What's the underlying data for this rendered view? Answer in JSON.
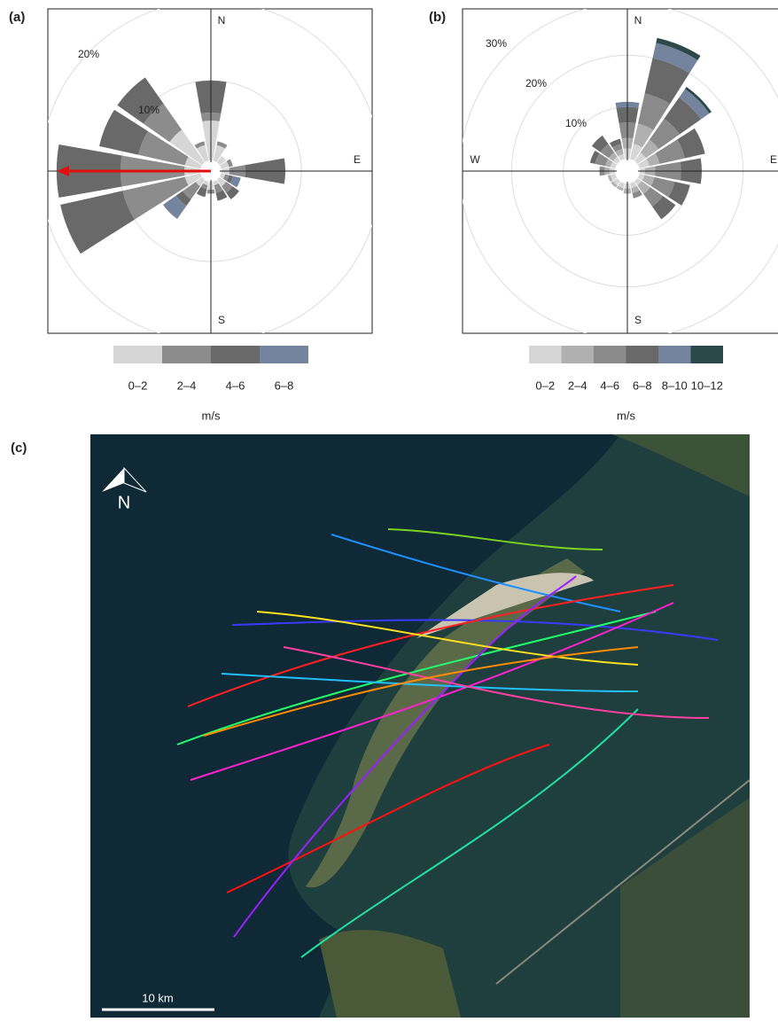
{
  "chart_data": [
    {
      "type": "windrose",
      "panel": "(a)",
      "legend_title": "m/s",
      "categories": [
        null,
        null,
        null,
        null,
        null,
        null,
        null,
        null,
        null,
        null,
        null,
        null,
        null,
        null,
        null,
        null
      ],
      "compass": [
        "N",
        "E",
        "S"
      ],
      "rlim": [
        0,
        20
      ],
      "rticks": [
        {
          "value": 10,
          "label": "10%"
        },
        {
          "value": 20,
          "label": "20%"
        }
      ],
      "series": [
        {
          "name": "0–2",
          "color": "#d6d6d6",
          "values": [
            5,
            2,
            1,
            1,
            1,
            0.5,
            1,
            0.5,
            1,
            0.5,
            1,
            2,
            2,
            2,
            5,
            2
          ]
        },
        {
          "name": "2–4",
          "color": "#8c8c8c",
          "values": [
            1,
            0.5,
            0,
            0.5,
            2,
            0.5,
            1,
            1,
            0.5,
            0.5,
            2,
            8,
            8,
            6,
            4,
            0.5
          ]
        },
        {
          "name": "4–6",
          "color": "#696969",
          "values": [
            4,
            0,
            0,
            0,
            5,
            0.5,
            1,
            1,
            0,
            1,
            1,
            8,
            8,
            5,
            4,
            0
          ]
        },
        {
          "name": "6–8",
          "color": "#74849e",
          "values": [
            0,
            0,
            0,
            0,
            0,
            1,
            0,
            0,
            0,
            0,
            2,
            0,
            0,
            0,
            0,
            0
          ]
        }
      ]
    },
    {
      "type": "windrose",
      "panel": "(b)",
      "legend_title": "m/s",
      "categories": [
        null,
        null,
        null,
        null,
        null,
        null,
        null,
        null,
        null,
        null,
        null,
        null,
        null,
        null,
        null,
        null
      ],
      "compass": [
        "N",
        "E",
        "S",
        "W"
      ],
      "rlim": [
        0,
        30
      ],
      "rticks": [
        {
          "value": 10,
          "label": "10%"
        },
        {
          "value": 20,
          "label": "20%"
        },
        {
          "value": 30,
          "label": "30%"
        }
      ],
      "series": [
        {
          "name": "0–2",
          "color": "#d6d6d6",
          "values": [
            2,
            3,
            2,
            2,
            1,
            1,
            1,
            1,
            1,
            1,
            1,
            1,
            1,
            1,
            1,
            1
          ]
        },
        {
          "name": "2–4",
          "color": "#b0b0b0",
          "values": [
            2,
            4,
            3,
            2,
            2,
            2,
            2,
            1,
            1,
            0.5,
            0.5,
            0.5,
            1,
            1,
            1,
            1
          ]
        },
        {
          "name": "4–6",
          "color": "#8a8a8a",
          "values": [
            3,
            6,
            5,
            5,
            5,
            4,
            3,
            1,
            0,
            0,
            0,
            0,
            1,
            2,
            2,
            1
          ]
        },
        {
          "name": "6–8",
          "color": "#696969",
          "values": [
            3,
            7,
            5,
            4,
            4,
            3,
            3,
            0,
            0,
            0,
            0,
            0,
            0,
            1,
            2,
            1
          ]
        },
        {
          "name": "8–10",
          "color": "#74849e",
          "values": [
            1,
            3,
            2,
            0,
            0,
            0,
            0,
            0,
            0,
            0,
            0,
            0,
            0,
            0,
            0,
            0
          ]
        },
        {
          "name": "10–12",
          "color": "#2c4848",
          "values": [
            0,
            1,
            0.5,
            0,
            0,
            0,
            0,
            0,
            0,
            0,
            0,
            0,
            0,
            0,
            0,
            0
          ]
        }
      ]
    }
  ],
  "map": {
    "panel": "(c)",
    "north_label": "N",
    "scale_label": "10 km"
  }
}
